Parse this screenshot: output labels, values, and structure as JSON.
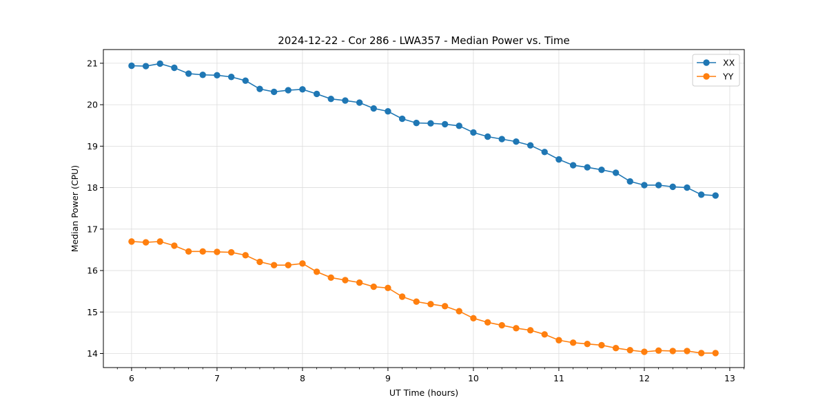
{
  "chart_data": {
    "type": "line",
    "title": "2024-12-22 - Cor 286 - LWA357 - Median Power vs. Time",
    "xlabel": "UT Time (hours)",
    "ylabel": "Median Power (CPU)",
    "xlim": [
      5.67,
      13.17
    ],
    "ylim": [
      13.66,
      21.33
    ],
    "xticks": [
      6,
      7,
      8,
      9,
      10,
      11,
      12,
      13
    ],
    "yticks": [
      14,
      15,
      16,
      17,
      18,
      19,
      20,
      21
    ],
    "grid": true,
    "legend_position": "top-right",
    "x": [
      6.0,
      6.167,
      6.333,
      6.5,
      6.667,
      6.833,
      7.0,
      7.167,
      7.333,
      7.5,
      7.667,
      7.833,
      8.0,
      8.167,
      8.333,
      8.5,
      8.667,
      8.833,
      9.0,
      9.167,
      9.333,
      9.5,
      9.667,
      9.833,
      10.0,
      10.167,
      10.333,
      10.5,
      10.667,
      10.833,
      11.0,
      11.167,
      11.333,
      11.5,
      11.667,
      11.833,
      12.0,
      12.167,
      12.333,
      12.5,
      12.667,
      12.833
    ],
    "series": [
      {
        "name": "XX",
        "color": "#1f77b4",
        "values": [
          20.94,
          20.93,
          20.99,
          20.89,
          20.75,
          20.72,
          20.71,
          20.67,
          20.58,
          20.38,
          20.31,
          20.35,
          20.37,
          20.26,
          20.14,
          20.1,
          20.05,
          19.91,
          19.84,
          19.66,
          19.56,
          19.55,
          19.53,
          19.49,
          19.33,
          19.23,
          19.17,
          19.11,
          19.02,
          18.86,
          18.68,
          18.54,
          18.49,
          18.43,
          18.36,
          18.15,
          18.06,
          18.06,
          18.02,
          18.0,
          17.83,
          17.81
        ]
      },
      {
        "name": "YY",
        "color": "#ff7f0e",
        "values": [
          16.7,
          16.68,
          16.7,
          16.6,
          16.46,
          16.46,
          16.45,
          16.44,
          16.37,
          16.21,
          16.13,
          16.13,
          16.17,
          15.97,
          15.83,
          15.77,
          15.71,
          15.61,
          15.58,
          15.37,
          15.25,
          15.19,
          15.14,
          15.02,
          14.85,
          14.75,
          14.68,
          14.61,
          14.56,
          14.46,
          14.32,
          14.26,
          14.23,
          14.2,
          14.13,
          14.08,
          14.04,
          14.07,
          14.06,
          14.06,
          14.01,
          14.01
        ]
      }
    ]
  }
}
